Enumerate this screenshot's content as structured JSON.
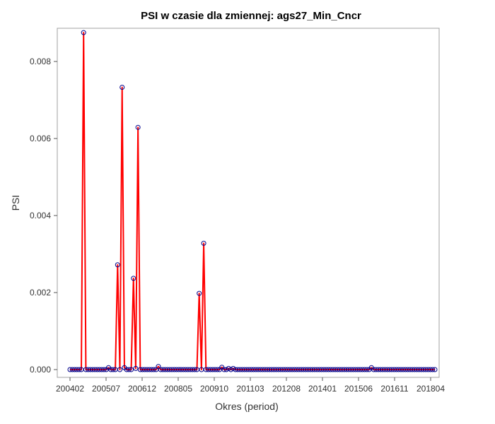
{
  "chart_data": {
    "type": "line",
    "title": "PSI w czasie dla zmiennej: ags27_Min_Cncr",
    "xlabel": "Okres (period)",
    "ylabel": "PSI",
    "ylim": [
      0,
      0.0088
    ],
    "y_ticks": [
      "0.000",
      "0.002",
      "0.004",
      "0.006",
      "0.008"
    ],
    "y_tick_values": [
      0,
      0.002,
      0.004,
      0.006,
      0.008
    ],
    "x_ticks": [
      "200402",
      "200507",
      "200612",
      "200805",
      "200910",
      "201103",
      "201208",
      "201401",
      "201506",
      "201611",
      "201804"
    ],
    "start_period": "200402",
    "end_period": "201806",
    "grid": false,
    "line_color": "#ff0000",
    "marker_color": "#00008b",
    "series": [
      {
        "values": [
          0,
          0,
          0,
          0,
          0,
          0,
          0.00875,
          0,
          0,
          0,
          0,
          0,
          0,
          0,
          0,
          0,
          0,
          5e-05,
          0,
          0,
          0,
          0.00272,
          0,
          0.00733,
          5e-05,
          0,
          0,
          0,
          0.00237,
          3e-05,
          0.00629,
          0,
          0,
          0,
          0,
          0,
          0,
          0,
          0,
          8e-05,
          0,
          0,
          0,
          0,
          0,
          0,
          0,
          0,
          0,
          0,
          0,
          0,
          0,
          0,
          0,
          0,
          0,
          0.00198,
          0,
          0.00328,
          0,
          0,
          0,
          0,
          0,
          0,
          0,
          6e-05,
          0,
          0,
          3e-05,
          0,
          3e-05,
          0,
          0,
          0,
          0,
          0,
          0,
          0,
          0,
          0,
          0,
          0,
          0,
          0,
          0,
          0,
          0,
          0,
          0,
          0,
          0,
          0,
          0,
          0,
          0,
          0,
          0,
          0,
          0,
          0,
          0,
          0,
          0,
          0,
          0,
          0,
          0,
          0,
          0,
          0,
          0,
          0,
          0,
          0,
          0,
          0,
          0,
          0,
          0,
          0,
          0,
          0,
          0,
          0,
          0,
          0,
          0,
          0,
          0,
          0,
          0,
          5e-05,
          0,
          0,
          0,
          0,
          0,
          0,
          0,
          0,
          0,
          0,
          0,
          0,
          0,
          0,
          0,
          0,
          0,
          0,
          0,
          0,
          0,
          0,
          0,
          0,
          0,
          0,
          0,
          0
        ]
      }
    ]
  }
}
